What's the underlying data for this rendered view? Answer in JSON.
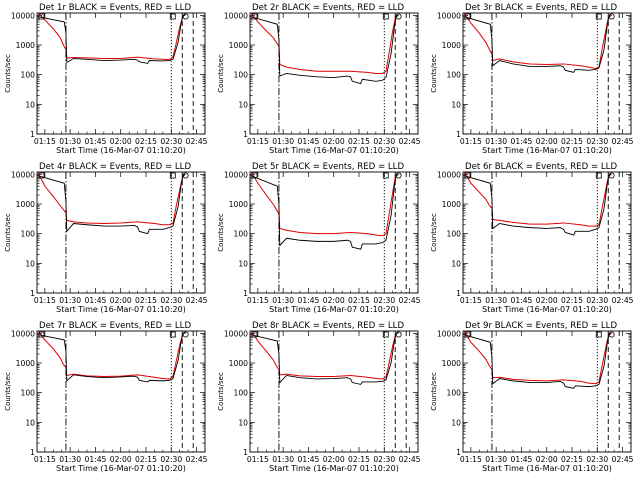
{
  "chart_data": {
    "type": "line",
    "panel_count": 9,
    "legend_text": "BLACK = Events, RED = LLD",
    "ylabel": "Counts/sec",
    "xlabel": "Start Time (16-Mar-07 01:10:20)",
    "x_ticks": [
      "01:15",
      "01:30",
      "01:45",
      "02:00",
      "02:15",
      "02:30",
      "02:45"
    ],
    "x_tick_minutes": [
      75,
      90,
      105,
      120,
      135,
      150,
      165
    ],
    "x_range_minutes": [
      70.33,
      170
    ],
    "y_ticks": [
      "1",
      "10",
      "100",
      "1000",
      "10000"
    ],
    "y_tick_values": [
      1,
      10,
      100,
      1000,
      10000
    ],
    "y_range": [
      1,
      12000
    ],
    "y_scale": "log",
    "series_colors": {
      "events": "#000000",
      "lld": "#e00000"
    },
    "vertical_markers": [
      {
        "minute": 87.5,
        "style": "dashdot"
      },
      {
        "minute": 150,
        "style": "dotted"
      },
      {
        "minute": 156.5,
        "style": "dashed"
      },
      {
        "minute": 163,
        "style": "dashed"
      }
    ],
    "panels": [
      {
        "title": "Det 1r BLACK = Events, RED = LLD",
        "events": {
          "x": [
            71,
            86.5,
            87.5,
            88,
            92,
            100,
            110,
            120,
            128,
            130,
            131,
            136,
            137,
            145,
            149,
            151,
            154,
            156,
            157,
            158.5
          ],
          "y": [
            9000,
            6000,
            2500,
            260,
            350,
            330,
            300,
            310,
            330,
            310,
            270,
            240,
            300,
            290,
            300,
            330,
            1200,
            6000,
            9500,
            10500
          ]
        },
        "lld": {
          "x": [
            71,
            75,
            80,
            84,
            86,
            87.5,
            88,
            92,
            100,
            110,
            120,
            130,
            140,
            145,
            149,
            151,
            153,
            155,
            156.5,
            158
          ],
          "y": [
            12000,
            7000,
            3500,
            1800,
            1000,
            700,
            360,
            380,
            370,
            350,
            350,
            390,
            340,
            330,
            320,
            400,
            1200,
            4000,
            8000,
            11000
          ]
        }
      },
      {
        "title": "Det 2r BLACK = Events, RED = LLD",
        "events": {
          "x": [
            71,
            86.5,
            87.5,
            88,
            92,
            100,
            110,
            120,
            128,
            130,
            131,
            136,
            137,
            145,
            149,
            151,
            154,
            156,
            157,
            158.5
          ],
          "y": [
            9000,
            5000,
            1500,
            90,
            110,
            95,
            85,
            80,
            90,
            85,
            60,
            50,
            70,
            60,
            65,
            80,
            500,
            4000,
            9000,
            10000
          ]
        },
        "lld": {
          "x": [
            71,
            75,
            80,
            84,
            86,
            87.5,
            88,
            92,
            100,
            110,
            120,
            130,
            140,
            145,
            149,
            151,
            153,
            155,
            156.5,
            158
          ],
          "y": [
            12000,
            6000,
            3000,
            1800,
            1200,
            900,
            220,
            180,
            150,
            130,
            130,
            130,
            120,
            110,
            110,
            130,
            600,
            3000,
            8000,
            11000
          ]
        }
      },
      {
        "title": "Det 3r BLACK = Events, RED = LLD",
        "events": {
          "x": [
            71,
            86.5,
            87.5,
            88,
            92,
            100,
            110,
            120,
            128,
            130,
            131,
            136,
            137,
            145,
            149,
            151,
            154,
            156,
            157,
            158.5
          ],
          "y": [
            9000,
            5000,
            1500,
            200,
            300,
            230,
            190,
            190,
            200,
            180,
            140,
            120,
            150,
            140,
            150,
            170,
            700,
            5000,
            9000,
            10000
          ]
        },
        "lld": {
          "x": [
            71,
            75,
            80,
            84,
            86,
            87.5,
            88,
            92,
            100,
            110,
            120,
            130,
            140,
            145,
            149,
            151,
            153,
            155,
            156.5,
            158
          ],
          "y": [
            12000,
            5500,
            2500,
            1200,
            700,
            500,
            300,
            340,
            270,
            230,
            220,
            230,
            200,
            180,
            160,
            180,
            800,
            3000,
            8000,
            11000
          ]
        }
      },
      {
        "title": "Det 4r BLACK = Events, RED = LLD",
        "events": {
          "x": [
            71,
            86.5,
            87.5,
            88,
            92,
            100,
            110,
            120,
            128,
            130,
            131,
            136,
            137,
            145,
            149,
            151,
            154,
            156,
            157,
            158.5
          ],
          "y": [
            9000,
            5000,
            1200,
            120,
            220,
            200,
            180,
            180,
            190,
            170,
            120,
            100,
            140,
            140,
            160,
            180,
            800,
            5000,
            9000,
            10000
          ]
        },
        "lld": {
          "x": [
            71,
            75,
            80,
            84,
            86,
            87.5,
            88,
            92,
            100,
            110,
            120,
            130,
            140,
            145,
            149,
            151,
            153,
            155,
            156.5,
            158
          ],
          "y": [
            11000,
            4000,
            1800,
            900,
            650,
            500,
            280,
            250,
            230,
            220,
            230,
            250,
            220,
            200,
            200,
            220,
            900,
            3000,
            7500,
            10500
          ]
        }
      },
      {
        "title": "Det 5r BLACK = Events, RED = LLD",
        "events": {
          "x": [
            71,
            86.5,
            87.5,
            88,
            92,
            100,
            110,
            120,
            128,
            130,
            131,
            136,
            137,
            145,
            149,
            151,
            154,
            156,
            157,
            158.5
          ],
          "y": [
            9000,
            4000,
            1000,
            40,
            70,
            60,
            55,
            55,
            60,
            55,
            35,
            30,
            45,
            45,
            50,
            60,
            400,
            4000,
            9000,
            10000
          ]
        },
        "lld": {
          "x": [
            71,
            75,
            80,
            84,
            86,
            87.5,
            88,
            92,
            100,
            110,
            120,
            130,
            140,
            145,
            149,
            151,
            153,
            155,
            156.5,
            158
          ],
          "y": [
            12000,
            5000,
            2000,
            1000,
            650,
            450,
            150,
            130,
            110,
            100,
            100,
            110,
            100,
            90,
            85,
            100,
            500,
            2500,
            8000,
            11000
          ]
        }
      },
      {
        "title": "Det 6r BLACK = Events, RED = LLD",
        "events": {
          "x": [
            71,
            86.5,
            87.5,
            88,
            92,
            100,
            110,
            120,
            128,
            130,
            131,
            136,
            137,
            145,
            149,
            151,
            154,
            156,
            157,
            158.5
          ],
          "y": [
            9000,
            5000,
            1500,
            150,
            220,
            180,
            160,
            150,
            160,
            140,
            110,
            90,
            120,
            120,
            140,
            160,
            700,
            5000,
            9000,
            10000
          ]
        },
        "lld": {
          "x": [
            71,
            75,
            80,
            84,
            86,
            87.5,
            88,
            92,
            100,
            110,
            120,
            130,
            140,
            145,
            149,
            151,
            153,
            155,
            156.5,
            158
          ],
          "y": [
            12000,
            5000,
            2500,
            1400,
            900,
            700,
            300,
            280,
            240,
            210,
            210,
            230,
            200,
            180,
            180,
            200,
            800,
            3000,
            8000,
            11000
          ]
        }
      },
      {
        "title": "Det 7r BLACK = Events, RED = LLD",
        "events": {
          "x": [
            71,
            86.5,
            87.5,
            88,
            92,
            100,
            110,
            120,
            128,
            130,
            131,
            136,
            137,
            145,
            149,
            151,
            154,
            156,
            157,
            158.5
          ],
          "y": [
            9000,
            6000,
            2500,
            250,
            400,
            350,
            320,
            340,
            360,
            330,
            260,
            230,
            260,
            250,
            260,
            300,
            1200,
            6000,
            9500,
            10500
          ]
        },
        "lld": {
          "x": [
            71,
            75,
            80,
            84,
            86,
            87.5,
            88,
            92,
            100,
            110,
            120,
            130,
            140,
            145,
            149,
            151,
            153,
            155,
            156.5,
            158
          ],
          "y": [
            12000,
            6000,
            3000,
            1500,
            900,
            700,
            380,
            420,
            370,
            350,
            360,
            400,
            330,
            300,
            290,
            350,
            1200,
            4000,
            8500,
            11000
          ]
        }
      },
      {
        "title": "Det 8r BLACK = Events, RED = LLD",
        "events": {
          "x": [
            71,
            86.5,
            87.5,
            88,
            92,
            100,
            110,
            120,
            128,
            130,
            131,
            136,
            137,
            145,
            149,
            151,
            154,
            156,
            157,
            158.5
          ],
          "y": [
            9000,
            5500,
            2000,
            220,
            380,
            320,
            290,
            300,
            320,
            290,
            220,
            190,
            230,
            230,
            240,
            270,
            1000,
            5500,
            9500,
            10500
          ]
        },
        "lld": {
          "x": [
            71,
            75,
            80,
            84,
            86,
            87.5,
            88,
            92,
            100,
            110,
            120,
            130,
            140,
            145,
            149,
            151,
            153,
            155,
            156.5,
            158
          ],
          "y": [
            12000,
            5500,
            2500,
            1300,
            800,
            600,
            400,
            420,
            370,
            350,
            350,
            380,
            330,
            300,
            290,
            330,
            1100,
            3800,
            8500,
            11000
          ]
        }
      },
      {
        "title": "Det 9r BLACK = Events, RED = LLD",
        "events": {
          "x": [
            71,
            86.5,
            87.5,
            88,
            92,
            100,
            110,
            120,
            128,
            130,
            131,
            136,
            137,
            145,
            149,
            151,
            154,
            156,
            157,
            158.5
          ],
          "y": [
            9000,
            5000,
            1500,
            200,
            300,
            250,
            220,
            220,
            240,
            210,
            160,
            140,
            170,
            160,
            170,
            190,
            800,
            5000,
            9000,
            10000
          ]
        },
        "lld": {
          "x": [
            71,
            75,
            80,
            84,
            86,
            87.5,
            88,
            92,
            100,
            110,
            120,
            130,
            140,
            145,
            149,
            151,
            153,
            155,
            156.5,
            158
          ],
          "y": [
            12000,
            5000,
            2500,
            1300,
            800,
            600,
            320,
            330,
            280,
            260,
            250,
            270,
            240,
            210,
            200,
            230,
            900,
            3200,
            8000,
            11000
          ]
        }
      }
    ]
  }
}
